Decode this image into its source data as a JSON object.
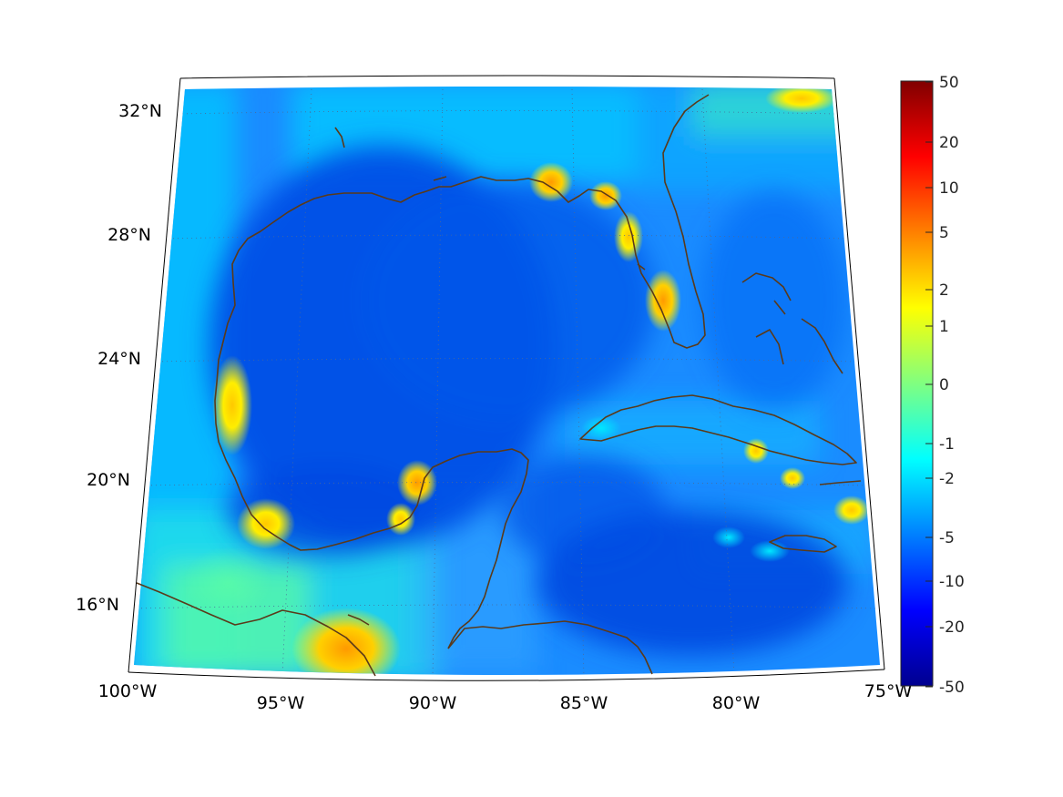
{
  "map": {
    "region": "Gulf of Mexico / Caribbean",
    "projection": "conic",
    "lon_range": [
      -100,
      -75
    ],
    "lat_range": [
      14,
      33
    ],
    "colormap": "jet",
    "coastline_color": "#5a3a1a",
    "graticule": "dotted",
    "lon_labels": [
      "100°W",
      "95°W",
      "90°W",
      "85°W",
      "80°W",
      "75°W"
    ],
    "lat_labels": [
      "32°N",
      "28°N",
      "24°N",
      "20°N",
      "16°N"
    ]
  },
  "colorbar": {
    "labels": [
      "50",
      "20",
      "10",
      "5",
      "2",
      "1",
      "0",
      "-1",
      "-2",
      "-5",
      "-10",
      "-20",
      "-50"
    ],
    "stops": [
      "#00008f",
      "#0000ff",
      "#0080ff",
      "#00ffff",
      "#80ff80",
      "#ffff00",
      "#ff8000",
      "#ff0000",
      "#800000"
    ]
  }
}
